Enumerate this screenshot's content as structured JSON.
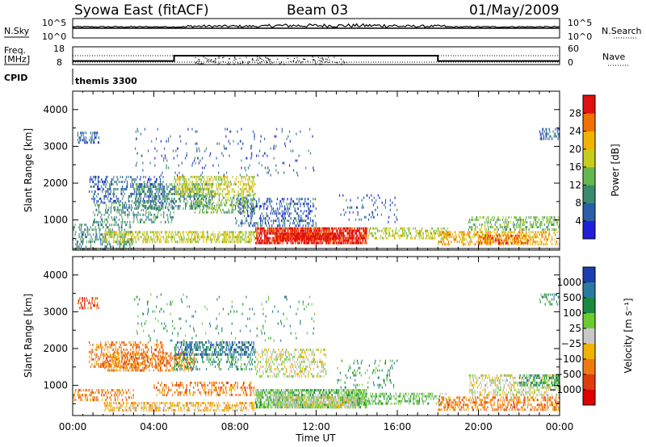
{
  "header": {
    "station": "Syowa East (fitACF)",
    "beam": "Beam 03",
    "date": "01/May/2009"
  },
  "panels": {
    "nsky": {
      "label": "N.Sky",
      "ticks": [
        "10^5",
        "10^0"
      ],
      "right_label": "N.Search",
      "right_ticks": [
        "10^5",
        "10^0"
      ]
    },
    "freq": {
      "label_line1": "Freq.",
      "label_line2": "[MHz]",
      "ticks": [
        "18",
        "8"
      ],
      "right_label": "Nave",
      "right_ticks": [
        "60",
        "0"
      ],
      "freq_series": {
        "x_hours": [
          0,
          5,
          5,
          18,
          18,
          24
        ],
        "mhz": [
          10,
          10,
          13,
          13,
          10,
          10
        ]
      }
    },
    "cpid": {
      "label": "CPID",
      "value": "themis 3300"
    }
  },
  "chart_data": [
    {
      "type": "heatmap",
      "name": "power",
      "ylabel": "Slant Range [km]",
      "xlabel": "",
      "xlim": [
        0,
        24
      ],
      "ylim": [
        180,
        4500
      ],
      "x_ticks": [
        "00:00",
        "04:00",
        "08:00",
        "12:00",
        "16:00",
        "20:00",
        "00:00"
      ],
      "y_ticks": [
        1000,
        2000,
        3000,
        4000
      ],
      "colorbar": {
        "label": "Power [dB]",
        "ticks": [
          "4",
          "8",
          "12",
          "16",
          "20",
          "24",
          "28"
        ],
        "colors": [
          "#1f1fd9",
          "#2a5fa8",
          "#3a8a6e",
          "#66b84e",
          "#c8cc1f",
          "#f0b400",
          "#f07000",
          "#e01010"
        ]
      },
      "regions": [
        {
          "t0": 0.0,
          "t1": 3.0,
          "r0": 200,
          "r1": 900,
          "lvl": 2,
          "d": 0.25
        },
        {
          "t0": 0.8,
          "t1": 4.5,
          "r0": 1500,
          "r1": 2200,
          "lvl": 1,
          "d": 0.25
        },
        {
          "t0": 1.0,
          "t1": 5.0,
          "r0": 900,
          "r1": 1500,
          "lvl": 2,
          "d": 0.22
        },
        {
          "t0": 3.0,
          "t1": 7.0,
          "r0": 1300,
          "r1": 2000,
          "lvl": 2,
          "d": 0.3
        },
        {
          "t0": 5.0,
          "t1": 9.0,
          "r0": 1700,
          "r1": 2200,
          "lvl": 4,
          "d": 0.35
        },
        {
          "t0": 6.0,
          "t1": 9.0,
          "r0": 1200,
          "r1": 1700,
          "lvl": 3,
          "d": 0.3
        },
        {
          "t0": 1.5,
          "t1": 9.0,
          "r0": 350,
          "r1": 700,
          "lvl": 4,
          "d": 0.4
        },
        {
          "t0": 9.0,
          "t1": 14.5,
          "r0": 350,
          "r1": 800,
          "lvl": 7,
          "d": 0.7
        },
        {
          "t0": 10.0,
          "t1": 13.0,
          "r0": 450,
          "r1": 650,
          "lvl": 7,
          "d": 0.85
        },
        {
          "t0": 8.0,
          "t1": 12.0,
          "r0": 800,
          "r1": 1600,
          "lvl": 1,
          "d": 0.22
        },
        {
          "t0": 14.5,
          "t1": 18.5,
          "r0": 500,
          "r1": 800,
          "lvl": 4,
          "d": 0.35
        },
        {
          "t0": 13.0,
          "t1": 16.0,
          "r0": 900,
          "r1": 1700,
          "lvl": 1,
          "d": 0.08
        },
        {
          "t0": 18.0,
          "t1": 24.0,
          "r0": 300,
          "r1": 700,
          "lvl": 5,
          "d": 0.35
        },
        {
          "t0": 20.0,
          "t1": 22.5,
          "r0": 350,
          "r1": 600,
          "lvl": 6,
          "d": 0.45
        },
        {
          "t0": 19.5,
          "t1": 24.0,
          "r0": 700,
          "r1": 1100,
          "lvl": 3,
          "d": 0.3
        },
        {
          "t0": 0.2,
          "t1": 1.3,
          "r0": 3100,
          "r1": 3400,
          "lvl": 1,
          "d": 0.3
        },
        {
          "t0": 23.0,
          "t1": 24.0,
          "r0": 3200,
          "r1": 3500,
          "lvl": 1,
          "d": 0.25
        },
        {
          "t0": 3.0,
          "t1": 12.0,
          "r0": 2200,
          "r1": 3500,
          "lvl": 1,
          "d": 0.03
        }
      ]
    },
    {
      "type": "heatmap",
      "name": "velocity",
      "ylabel": "Slant Range [km]",
      "xlabel": "Time UT",
      "xlim": [
        0,
        24
      ],
      "ylim": [
        180,
        4500
      ],
      "x_ticks": [
        "00:00",
        "04:00",
        "08:00",
        "12:00",
        "16:00",
        "20:00",
        "00:00"
      ],
      "y_ticks": [
        1000,
        2000,
        3000,
        4000
      ],
      "colorbar": {
        "label": "Velocity [m s⁻¹]",
        "ticks": [
          "1000",
          "500",
          "100",
          "25",
          "−25",
          "−100",
          "−500",
          "−1000"
        ],
        "colors": [
          "#1a3fb0",
          "#2a7aa0",
          "#1a8a40",
          "#6acc30",
          "#c8c8c8",
          "#f0b400",
          "#f07a10",
          "#e03c10",
          "#e00000"
        ]
      },
      "regions": [
        {
          "t0": 0.0,
          "t1": 3.0,
          "r0": 600,
          "r1": 900,
          "lvl": 6,
          "d": 0.3
        },
        {
          "t0": 0.8,
          "t1": 4.5,
          "r0": 1500,
          "r1": 2200,
          "lvl": 6,
          "d": 0.25
        },
        {
          "t0": 1.5,
          "t1": 6.0,
          "r0": 1400,
          "r1": 1900,
          "lvl": 6,
          "d": 0.35
        },
        {
          "t0": 1.5,
          "t1": 9.0,
          "r0": 300,
          "r1": 550,
          "lvl": 5,
          "d": 0.4
        },
        {
          "t0": 4.0,
          "t1": 9.0,
          "r0": 700,
          "r1": 1100,
          "lvl": 6,
          "d": 0.25
        },
        {
          "t0": 5.0,
          "t1": 9.0,
          "r0": 1800,
          "r1": 2200,
          "lvl": 1,
          "d": 0.4
        },
        {
          "t0": 5.0,
          "t1": 9.0,
          "r0": 1400,
          "r1": 1800,
          "lvl": 2,
          "d": 0.2
        },
        {
          "t0": 9.0,
          "t1": 14.5,
          "r0": 350,
          "r1": 900,
          "lvl": 3,
          "d": 0.6
        },
        {
          "t0": 10.0,
          "t1": 14.0,
          "r0": 400,
          "r1": 700,
          "lvl": 4,
          "d": 0.55
        },
        {
          "t0": 9.0,
          "t1": 12.5,
          "r0": 1200,
          "r1": 2000,
          "lvl": 4,
          "d": 0.25
        },
        {
          "t0": 14.0,
          "t1": 18.5,
          "r0": 500,
          "r1": 800,
          "lvl": 3,
          "d": 0.35
        },
        {
          "t0": 13.0,
          "t1": 16.0,
          "r0": 900,
          "r1": 1700,
          "lvl": 2,
          "d": 0.08
        },
        {
          "t0": 18.0,
          "t1": 24.0,
          "r0": 300,
          "r1": 700,
          "lvl": 6,
          "d": 0.35
        },
        {
          "t0": 19.5,
          "t1": 24.0,
          "r0": 700,
          "r1": 1300,
          "lvl": 4,
          "d": 0.3
        },
        {
          "t0": 22.0,
          "t1": 24.0,
          "r0": 1000,
          "r1": 1300,
          "lvl": 2,
          "d": 0.35
        },
        {
          "t0": 0.2,
          "t1": 1.3,
          "r0": 3100,
          "r1": 3400,
          "lvl": 7,
          "d": 0.3
        },
        {
          "t0": 23.0,
          "t1": 24.0,
          "r0": 3200,
          "r1": 3500,
          "lvl": 2,
          "d": 0.25
        },
        {
          "t0": 3.0,
          "t1": 12.0,
          "r0": 2200,
          "r1": 3500,
          "lvl": 2,
          "d": 0.03
        }
      ]
    }
  ]
}
